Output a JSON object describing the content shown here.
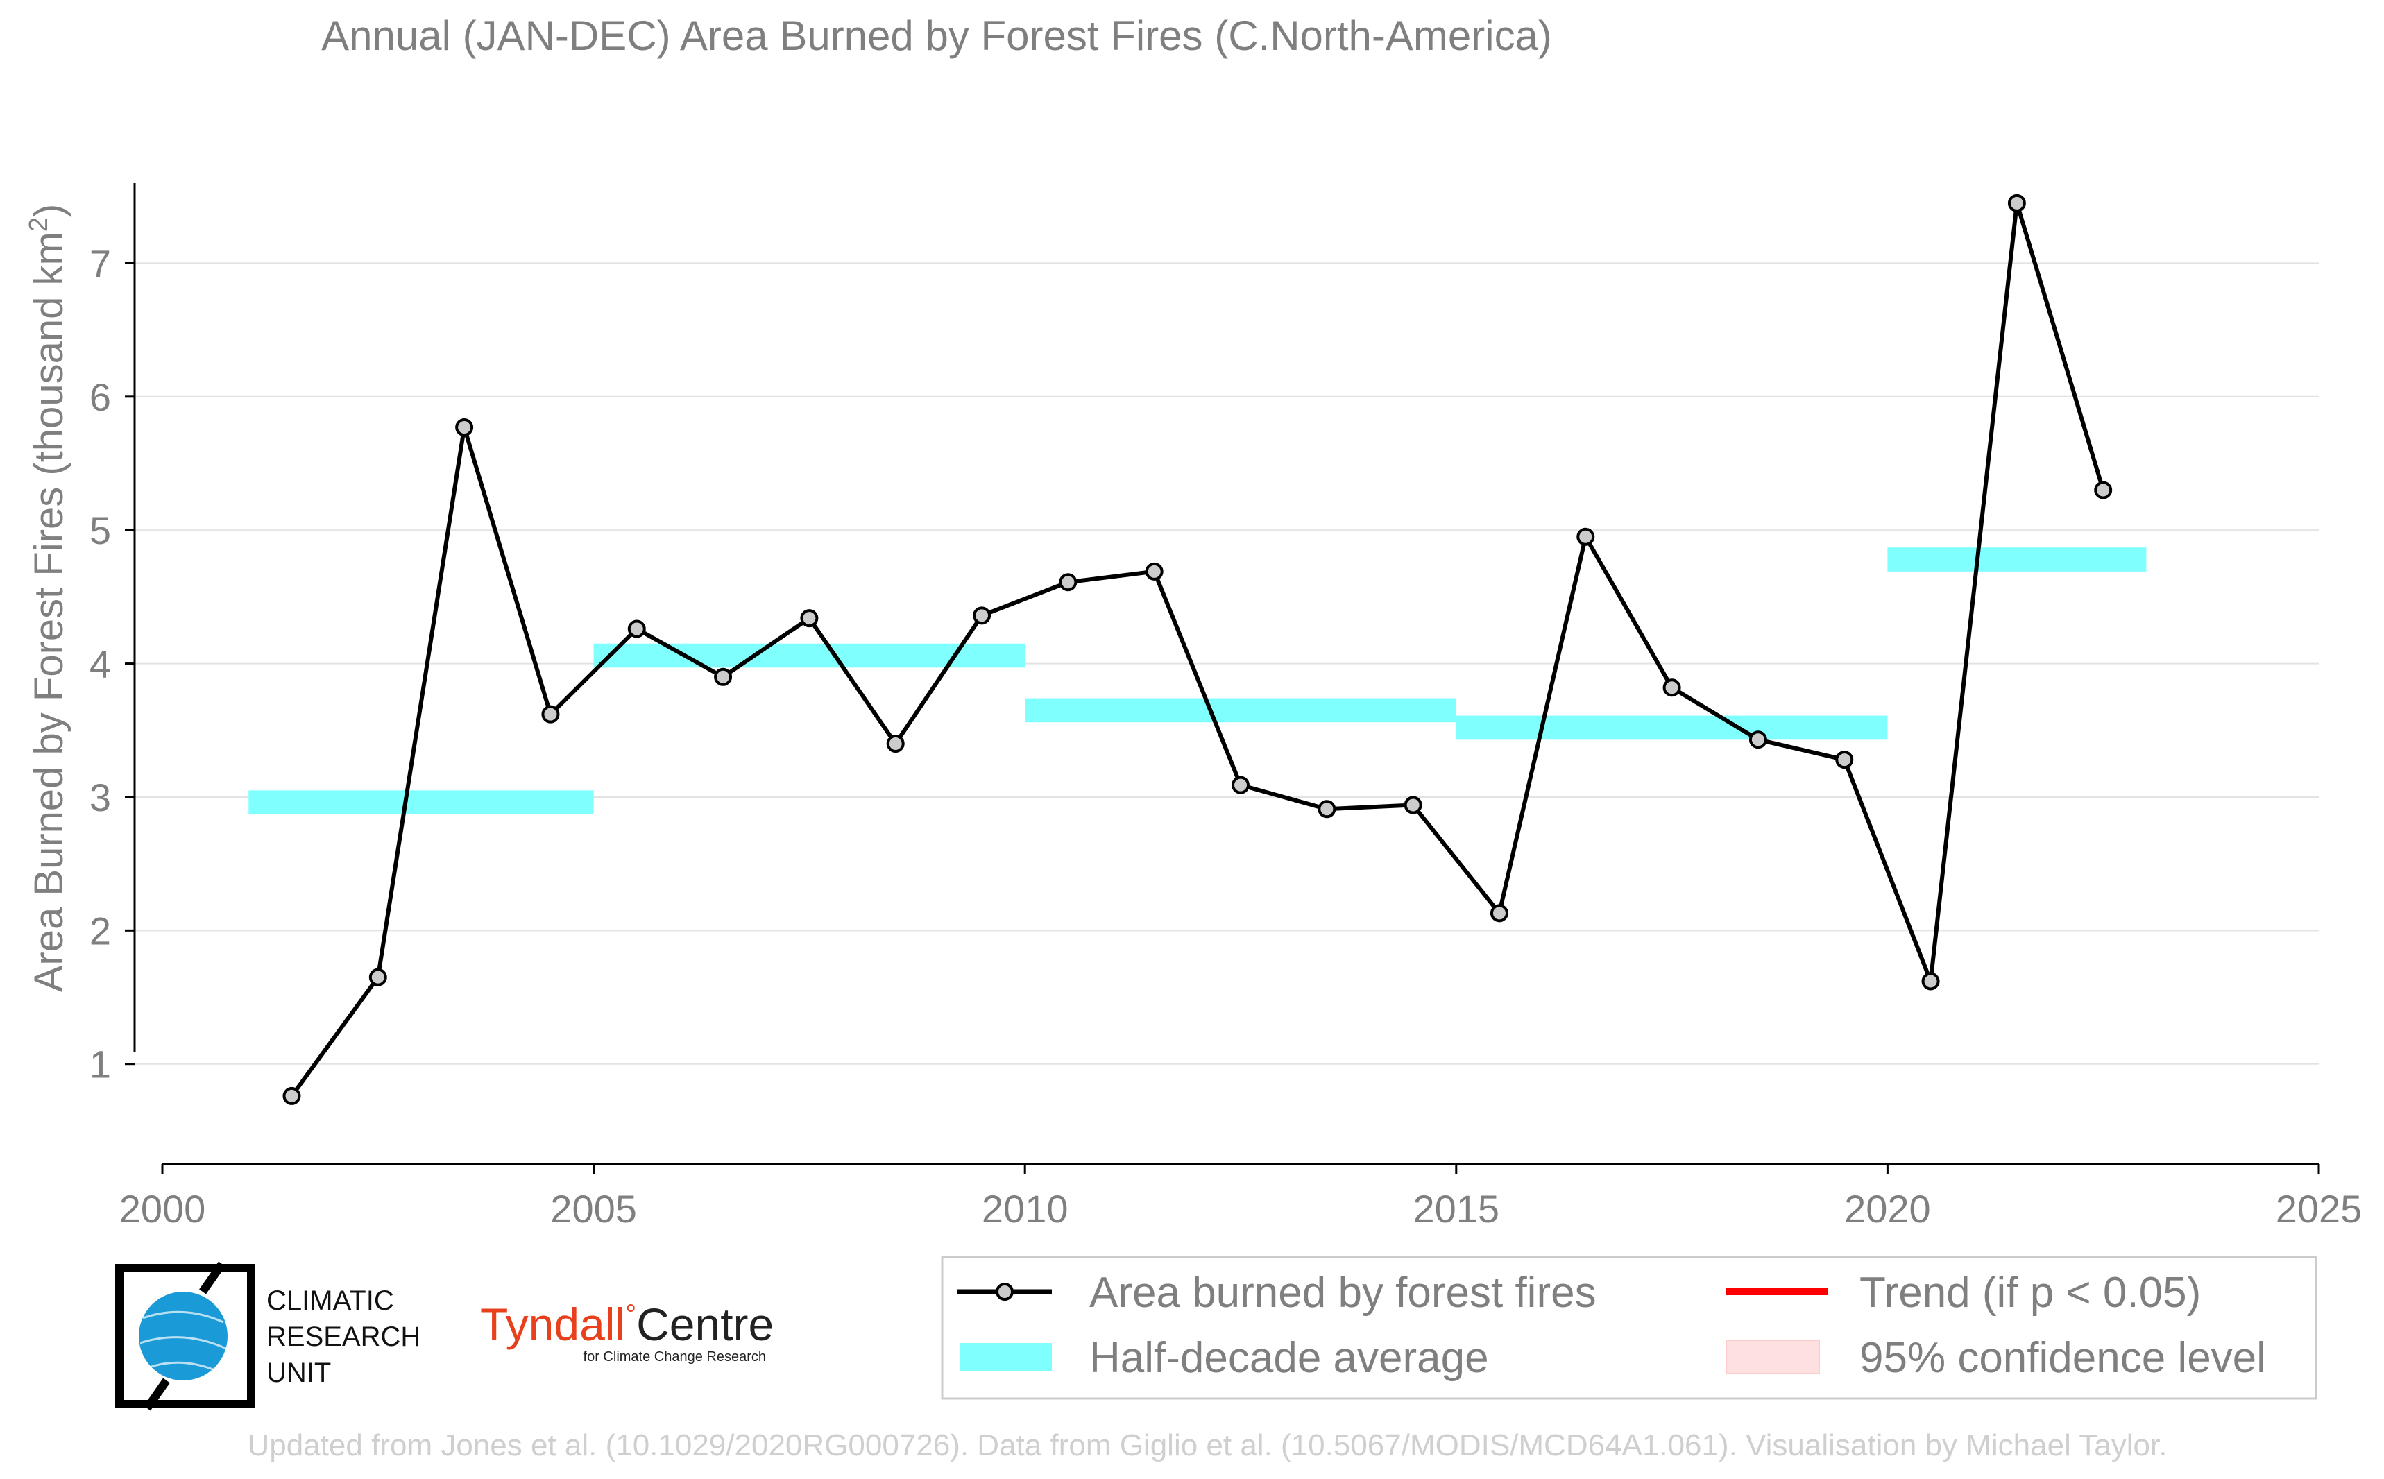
{
  "chart_data": {
    "type": "line",
    "title": "Annual (JAN-DEC) Area Burned by Forest Fires (C.North-America)",
    "ylabel_main": "Area Burned by Forest Fires (thousand km",
    "ylabel_sup": "2",
    "ylabel_close": ")",
    "xlabel": "",
    "xlim": [
      2000,
      2025
    ],
    "ylim": [
      0.25,
      7.6
    ],
    "xticks": [
      2000,
      2005,
      2010,
      2015,
      2020,
      2025
    ],
    "yticks": [
      1,
      2,
      3,
      4,
      5,
      6,
      7
    ],
    "grid": "horizontal",
    "series": [
      {
        "name": "Area burned by forest fires",
        "color": "#000000",
        "marker_fill": "#cccccc",
        "x": [
          2001.5,
          2002.5,
          2003.5,
          2004.5,
          2005.5,
          2006.5,
          2007.5,
          2008.5,
          2009.5,
          2010.5,
          2011.5,
          2012.5,
          2013.5,
          2014.5,
          2015.5,
          2016.5,
          2017.5,
          2018.5,
          2019.5,
          2020.5,
          2021.5,
          2022.5
        ],
        "values": [
          0.76,
          1.65,
          5.77,
          3.62,
          4.26,
          3.9,
          4.34,
          3.4,
          4.36,
          4.61,
          4.69,
          3.09,
          2.91,
          2.94,
          2.13,
          4.95,
          3.82,
          3.43,
          3.28,
          1.62,
          7.45,
          5.3
        ]
      }
    ],
    "half_decade_averages": {
      "name": "Half-decade average",
      "color": "#80ffff",
      "segments": [
        {
          "x0": 2001,
          "x1": 2005,
          "value": 2.96
        },
        {
          "x0": 2005,
          "x1": 2010,
          "value": 4.06
        },
        {
          "x0": 2010,
          "x1": 2015,
          "value": 3.65
        },
        {
          "x0": 2015,
          "x1": 2020,
          "value": 3.52
        },
        {
          "x0": 2020,
          "x1": 2023,
          "value": 4.78
        }
      ]
    },
    "legend": {
      "placement": "bottom-right",
      "items": [
        {
          "label": "Area burned by forest fires",
          "kind": "line-marker",
          "color": "#000000"
        },
        {
          "label": "Trend (if p < 0.05)",
          "kind": "line",
          "color": "#ff0000"
        },
        {
          "label": "Half-decade average",
          "kind": "band",
          "color": "#80ffff"
        },
        {
          "label": "95% confidence level",
          "kind": "band",
          "color": "#ffe0e0"
        }
      ]
    }
  },
  "logos": {
    "cru_lines": [
      "CLIMATIC",
      "RESEARCH",
      "UNIT"
    ],
    "tyndall_red": "Tyndall",
    "tyndall_degree": "°",
    "tyndall_black": "Centre",
    "tyndall_sub": "for Climate Change Research"
  },
  "footer": "Updated from Jones et al. (10.1029/2020RG000726). Data from Giglio et al. (10.5067/MODIS/MCD64A1.061). Visualisation by Michael Taylor."
}
